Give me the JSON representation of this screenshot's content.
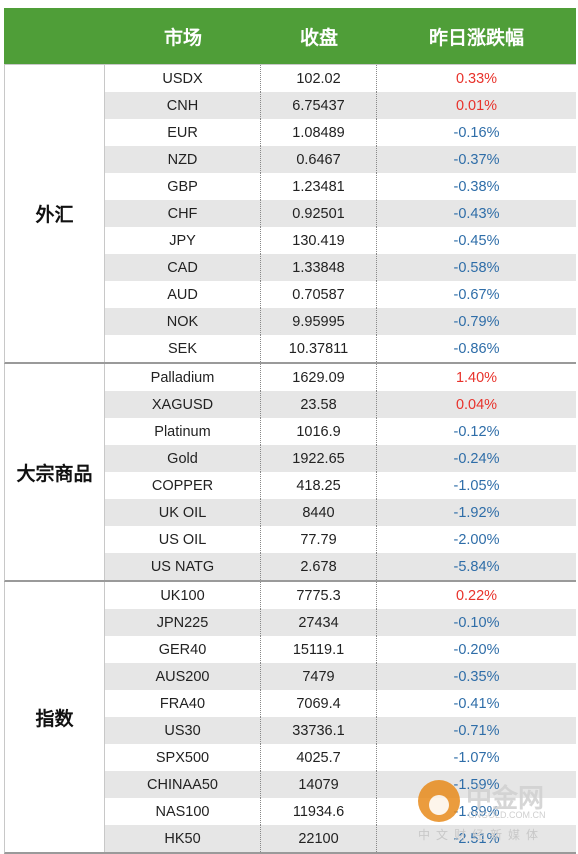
{
  "header": {
    "col0": "",
    "col1": "市场",
    "col2": "收盘",
    "col3": "昨日涨跌幅"
  },
  "sections": [
    {
      "name": "外汇",
      "rows": [
        {
          "market": "USDX",
          "close": "102.02",
          "change": "0.33%",
          "dir": "pos"
        },
        {
          "market": "CNH",
          "close": "6.75437",
          "change": "0.01%",
          "dir": "pos"
        },
        {
          "market": "EUR",
          "close": "1.08489",
          "change": "-0.16%",
          "dir": "neg"
        },
        {
          "market": "NZD",
          "close": "0.6467",
          "change": "-0.37%",
          "dir": "neg"
        },
        {
          "market": "GBP",
          "close": "1.23481",
          "change": "-0.38%",
          "dir": "neg"
        },
        {
          "market": "CHF",
          "close": "0.92501",
          "change": "-0.43%",
          "dir": "neg"
        },
        {
          "market": "JPY",
          "close": "130.419",
          "change": "-0.45%",
          "dir": "neg"
        },
        {
          "market": "CAD",
          "close": "1.33848",
          "change": "-0.58%",
          "dir": "neg"
        },
        {
          "market": "AUD",
          "close": "0.70587",
          "change": "-0.67%",
          "dir": "neg"
        },
        {
          "market": "NOK",
          "close": "9.95995",
          "change": "-0.79%",
          "dir": "neg"
        },
        {
          "market": "SEK",
          "close": "10.37811",
          "change": "-0.86%",
          "dir": "neg"
        }
      ]
    },
    {
      "name": "大宗商品",
      "rows": [
        {
          "market": "Palladium",
          "close": "1629.09",
          "change": "1.40%",
          "dir": "pos"
        },
        {
          "market": "XAGUSD",
          "close": "23.58",
          "change": "0.04%",
          "dir": "pos"
        },
        {
          "market": "Platinum",
          "close": "1016.9",
          "change": "-0.12%",
          "dir": "neg"
        },
        {
          "market": "Gold",
          "close": "1922.65",
          "change": "-0.24%",
          "dir": "neg"
        },
        {
          "market": "COPPER",
          "close": "418.25",
          "change": "-1.05%",
          "dir": "neg"
        },
        {
          "market": "UK OIL",
          "close": "8440",
          "change": "-1.92%",
          "dir": "neg"
        },
        {
          "market": "US OIL",
          "close": "77.79",
          "change": "-2.00%",
          "dir": "neg"
        },
        {
          "market": "US NATG",
          "close": "2.678",
          "change": "-5.84%",
          "dir": "neg"
        }
      ]
    },
    {
      "name": "指数",
      "rows": [
        {
          "market": "UK100",
          "close": "7775.3",
          "change": "0.22%",
          "dir": "pos"
        },
        {
          "market": "JPN225",
          "close": "27434",
          "change": "-0.10%",
          "dir": "neg"
        },
        {
          "market": "GER40",
          "close": "15119.1",
          "change": "-0.20%",
          "dir": "neg"
        },
        {
          "market": "AUS200",
          "close": "7479",
          "change": "-0.35%",
          "dir": "neg"
        },
        {
          "market": "FRA40",
          "close": "7069.4",
          "change": "-0.41%",
          "dir": "neg"
        },
        {
          "market": "US30",
          "close": "33736.1",
          "change": "-0.71%",
          "dir": "neg"
        },
        {
          "market": "SPX500",
          "close": "4025.7",
          "change": "-1.07%",
          "dir": "neg"
        },
        {
          "market": "CHINAA50",
          "close": "14079",
          "change": "-1.59%",
          "dir": "neg"
        },
        {
          "market": "NAS100",
          "close": "11934.6",
          "change": "-1.89%",
          "dir": "neg"
        },
        {
          "market": "HK50",
          "close": "22100",
          "change": "-2.51%",
          "dir": "neg"
        }
      ]
    }
  ],
  "watermark": {
    "title": "中金网",
    "url": "CNGOLD.COM.CN",
    "subtitle": "中文财经新媒体"
  },
  "colors": {
    "header_bg": "#4f9e38",
    "positive": "#e8322b",
    "negative": "#2e6da8",
    "stripe": "#e6e6e6"
  }
}
